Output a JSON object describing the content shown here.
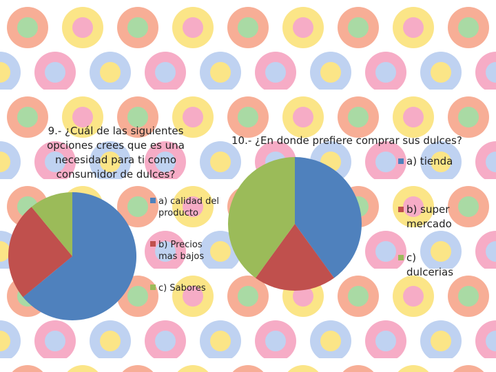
{
  "chart_data": [
    {
      "type": "pie",
      "title": "9.- ¿Cuál de las siguientes opciones crees que es una necesidad para ti como consumidor de dulces?",
      "categories": [
        "a) calidad del producto",
        "b) Precios mas bajos",
        "c) Sabores"
      ],
      "values": [
        64,
        25,
        11
      ],
      "colors": [
        "#4f81bd",
        "#c0504d",
        "#9bbb59"
      ]
    },
    {
      "type": "pie",
      "title": "10.- ¿En donde prefiere comprar sus dulces?",
      "categories": [
        "a) tienda",
        "b) super mercado",
        "c) dulcerias"
      ],
      "values": [
        40,
        20,
        40
      ],
      "colors": [
        "#4f81bd",
        "#c0504d",
        "#9bbb59"
      ]
    }
  ]
}
